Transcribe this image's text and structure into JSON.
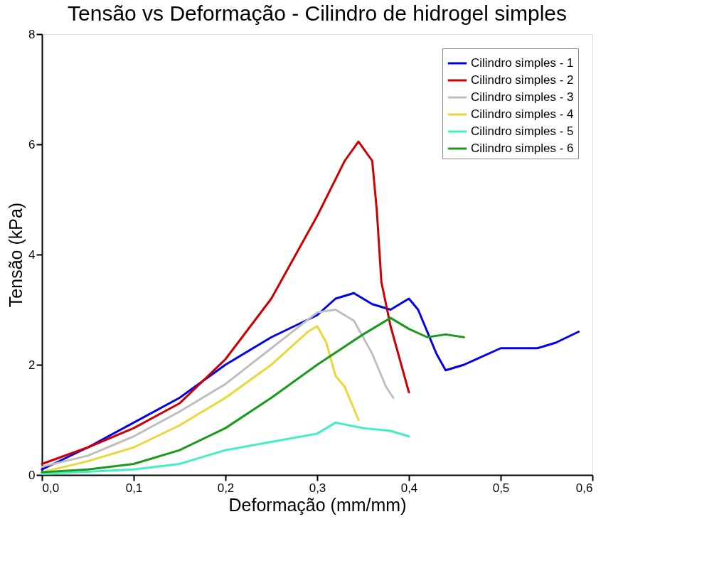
{
  "chart_data": {
    "type": "line",
    "title": "Tensão vs Deformação - Cilindro de hidrogel simples",
    "xlabel": "Deformação (mm/mm)",
    "ylabel": "Tensão (kPa)",
    "xlim": [
      0,
      0.6
    ],
    "xticks": [
      {
        "value": 0,
        "label": "0,0"
      },
      {
        "value": 0.1,
        "label": "0,1"
      },
      {
        "value": 0.2,
        "label": "0,2"
      },
      {
        "value": 0.3,
        "label": "0,3"
      },
      {
        "value": 0.4,
        "label": "0,4"
      },
      {
        "value": 0.5,
        "label": "0,5"
      },
      {
        "value": 0.6,
        "label": "0,6"
      }
    ],
    "ylim": [
      0,
      8
    ],
    "yticks": [
      0,
      2,
      4,
      6,
      8
    ],
    "grid": false,
    "legend": "top right",
    "marker": "none",
    "line_style": "solid",
    "series": [
      {
        "name": "Cilindro simples - 1",
        "color": "#0000ee",
        "x": [
          0,
          0.05,
          0.1,
          0.15,
          0.2,
          0.25,
          0.3,
          0.32,
          0.34,
          0.36,
          0.38,
          0.4,
          0.41,
          0.42,
          0.43,
          0.44,
          0.46,
          0.5,
          0.54,
          0.56,
          0.585
        ],
        "values": [
          0.1,
          0.5,
          0.95,
          1.4,
          2.0,
          2.5,
          2.9,
          3.2,
          3.3,
          3.1,
          3.0,
          3.2,
          3.0,
          2.6,
          2.2,
          1.9,
          2.0,
          2.3,
          2.3,
          2.4,
          2.6
        ]
      },
      {
        "name": "Cilindro simples - 2",
        "color": "#cc0000",
        "x": [
          0,
          0.05,
          0.1,
          0.15,
          0.2,
          0.25,
          0.3,
          0.33,
          0.345,
          0.36,
          0.365,
          0.37,
          0.38,
          0.39,
          0.4
        ],
        "values": [
          0.2,
          0.5,
          0.85,
          1.3,
          2.1,
          3.2,
          4.7,
          5.7,
          6.05,
          5.7,
          4.8,
          3.5,
          2.7,
          2.1,
          1.5
        ]
      },
      {
        "name": "Cilindro simples - 3",
        "color": "#bfbfbf",
        "x": [
          0,
          0.05,
          0.1,
          0.15,
          0.2,
          0.25,
          0.3,
          0.32,
          0.34,
          0.36,
          0.375,
          0.383
        ],
        "values": [
          0.15,
          0.35,
          0.7,
          1.15,
          1.65,
          2.3,
          2.95,
          3.0,
          2.8,
          2.2,
          1.6,
          1.4
        ]
      },
      {
        "name": "Cilindro simples - 4",
        "color": "#e8d838",
        "x": [
          0,
          0.05,
          0.1,
          0.15,
          0.2,
          0.25,
          0.29,
          0.3,
          0.31,
          0.32,
          0.33,
          0.34,
          0.345
        ],
        "values": [
          0.05,
          0.25,
          0.5,
          0.9,
          1.4,
          2.0,
          2.6,
          2.7,
          2.4,
          1.8,
          1.6,
          1.2,
          1.0
        ]
      },
      {
        "name": "Cilindro simples - 5",
        "color": "#40f0c0",
        "x": [
          0,
          0.1,
          0.15,
          0.2,
          0.25,
          0.3,
          0.32,
          0.35,
          0.38,
          0.4
        ],
        "values": [
          0.02,
          0.1,
          0.2,
          0.45,
          0.6,
          0.75,
          0.95,
          0.85,
          0.8,
          0.7
        ]
      },
      {
        "name": "Cilindro simples - 6",
        "color": "#1a9a1a",
        "x": [
          0,
          0.05,
          0.1,
          0.15,
          0.2,
          0.25,
          0.3,
          0.35,
          0.38,
          0.4,
          0.42,
          0.44,
          0.46
        ],
        "values": [
          0.05,
          0.1,
          0.2,
          0.45,
          0.85,
          1.4,
          2.0,
          2.55,
          2.85,
          2.65,
          2.5,
          2.55,
          2.5
        ]
      }
    ]
  }
}
